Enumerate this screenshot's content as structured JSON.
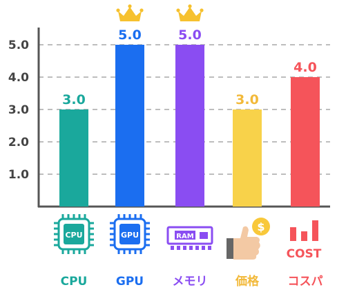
{
  "chart_data": {
    "type": "bar",
    "categories": [
      "CPU",
      "GPU",
      "メモリ",
      "価格",
      "コスパ"
    ],
    "values": [
      3.0,
      5.0,
      5.0,
      3.0,
      4.0
    ],
    "value_labels": [
      "3.0",
      "5.0",
      "5.0",
      "3.0",
      "4.0"
    ],
    "colors": [
      "#1aa89c",
      "#1b6ef0",
      "#8a4df2",
      "#f8d24a",
      "#f5545a"
    ],
    "label_colors": [
      "#1aa89c",
      "#1b6ef0",
      "#8a4df2",
      "#f2b93a",
      "#f5545a"
    ],
    "crowned": [
      false,
      true,
      true,
      false,
      false
    ],
    "icons": [
      "cpu-chip-icon",
      "gpu-chip-icon",
      "ram-module-icon",
      "thumbs-up-coin-icon",
      "cost-bars-icon"
    ],
    "icon_texts": [
      "CPU",
      "GPU",
      "RAM",
      "$",
      "COST"
    ],
    "yticks": [
      1.0,
      2.0,
      3.0,
      4.0,
      5.0
    ],
    "ytick_labels": [
      "1.0",
      "2.0",
      "3.0",
      "4.0",
      "5.0"
    ],
    "ylim": [
      0,
      5.5
    ],
    "grid": true,
    "title": "",
    "xlabel": "",
    "ylabel": ""
  }
}
